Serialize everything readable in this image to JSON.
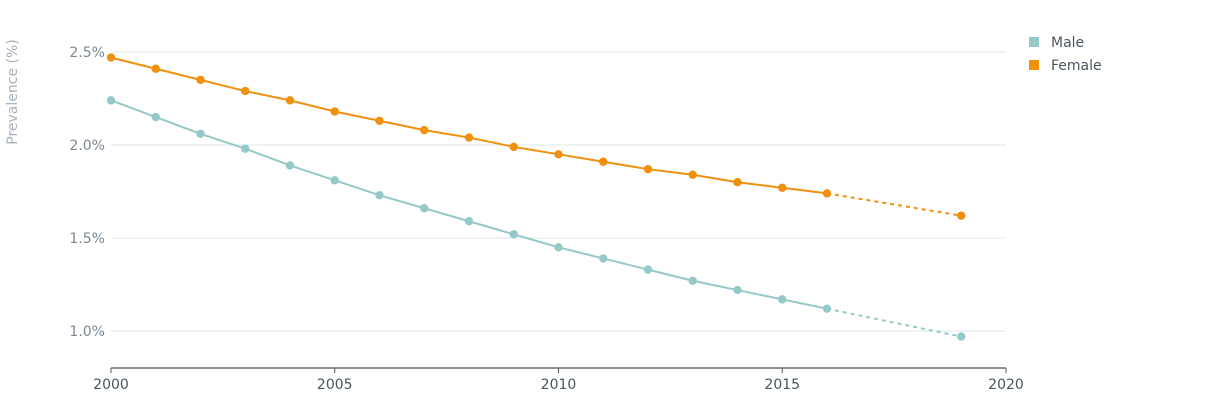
{
  "chart_data": {
    "type": "line",
    "title": "",
    "xlabel": "",
    "ylabel": "Prevalence (%)",
    "xlim": [
      2000,
      2020
    ],
    "ylim": [
      0.8,
      2.6
    ],
    "x_ticks": [
      2000,
      2005,
      2010,
      2015,
      2020
    ],
    "x_tick_labels": [
      "2000",
      "2005",
      "2010",
      "2015",
      "2020"
    ],
    "y_ticks": [
      1.0,
      1.5,
      2.0,
      2.5
    ],
    "y_tick_labels": [
      "1.0%",
      "1.5%",
      "2.0%",
      "2.5%"
    ],
    "grid": "horizontal",
    "legend_position": "top-right",
    "series": [
      {
        "name": "Male",
        "color": "#95c9c7",
        "points": [
          {
            "x": 2000,
            "y": 2.24,
            "projected": false
          },
          {
            "x": 2001,
            "y": 2.15,
            "projected": false
          },
          {
            "x": 2002,
            "y": 2.06,
            "projected": false
          },
          {
            "x": 2003,
            "y": 1.98,
            "projected": false
          },
          {
            "x": 2004,
            "y": 1.89,
            "projected": false
          },
          {
            "x": 2005,
            "y": 1.81,
            "projected": false
          },
          {
            "x": 2006,
            "y": 1.73,
            "projected": false
          },
          {
            "x": 2007,
            "y": 1.66,
            "projected": false
          },
          {
            "x": 2008,
            "y": 1.59,
            "projected": false
          },
          {
            "x": 2009,
            "y": 1.52,
            "projected": false
          },
          {
            "x": 2010,
            "y": 1.45,
            "projected": false
          },
          {
            "x": 2011,
            "y": 1.39,
            "projected": false
          },
          {
            "x": 2012,
            "y": 1.33,
            "projected": false
          },
          {
            "x": 2013,
            "y": 1.27,
            "projected": false
          },
          {
            "x": 2014,
            "y": 1.22,
            "projected": false
          },
          {
            "x": 2015,
            "y": 1.17,
            "projected": false
          },
          {
            "x": 2016,
            "y": 1.12,
            "projected": false
          },
          {
            "x": 2019,
            "y": 0.97,
            "projected": true
          }
        ]
      },
      {
        "name": "Female",
        "color": "#f0900f",
        "points": [
          {
            "x": 2000,
            "y": 2.47,
            "projected": false
          },
          {
            "x": 2001,
            "y": 2.41,
            "projected": false
          },
          {
            "x": 2002,
            "y": 2.35,
            "projected": false
          },
          {
            "x": 2003,
            "y": 2.29,
            "projected": false
          },
          {
            "x": 2004,
            "y": 2.24,
            "projected": false
          },
          {
            "x": 2005,
            "y": 2.18,
            "projected": false
          },
          {
            "x": 2006,
            "y": 2.13,
            "projected": false
          },
          {
            "x": 2007,
            "y": 2.08,
            "projected": false
          },
          {
            "x": 2008,
            "y": 2.04,
            "projected": false
          },
          {
            "x": 2009,
            "y": 1.99,
            "projected": false
          },
          {
            "x": 2010,
            "y": 1.95,
            "projected": false
          },
          {
            "x": 2011,
            "y": 1.91,
            "projected": false
          },
          {
            "x": 2012,
            "y": 1.87,
            "projected": false
          },
          {
            "x": 2013,
            "y": 1.84,
            "projected": false
          },
          {
            "x": 2014,
            "y": 1.8,
            "projected": false
          },
          {
            "x": 2015,
            "y": 1.77,
            "projected": false
          },
          {
            "x": 2016,
            "y": 1.74,
            "projected": false
          },
          {
            "x": 2019,
            "y": 1.62,
            "projected": true
          }
        ]
      }
    ]
  },
  "colors": {
    "grid": "#dde9e8",
    "axis": "#4a5560"
  }
}
